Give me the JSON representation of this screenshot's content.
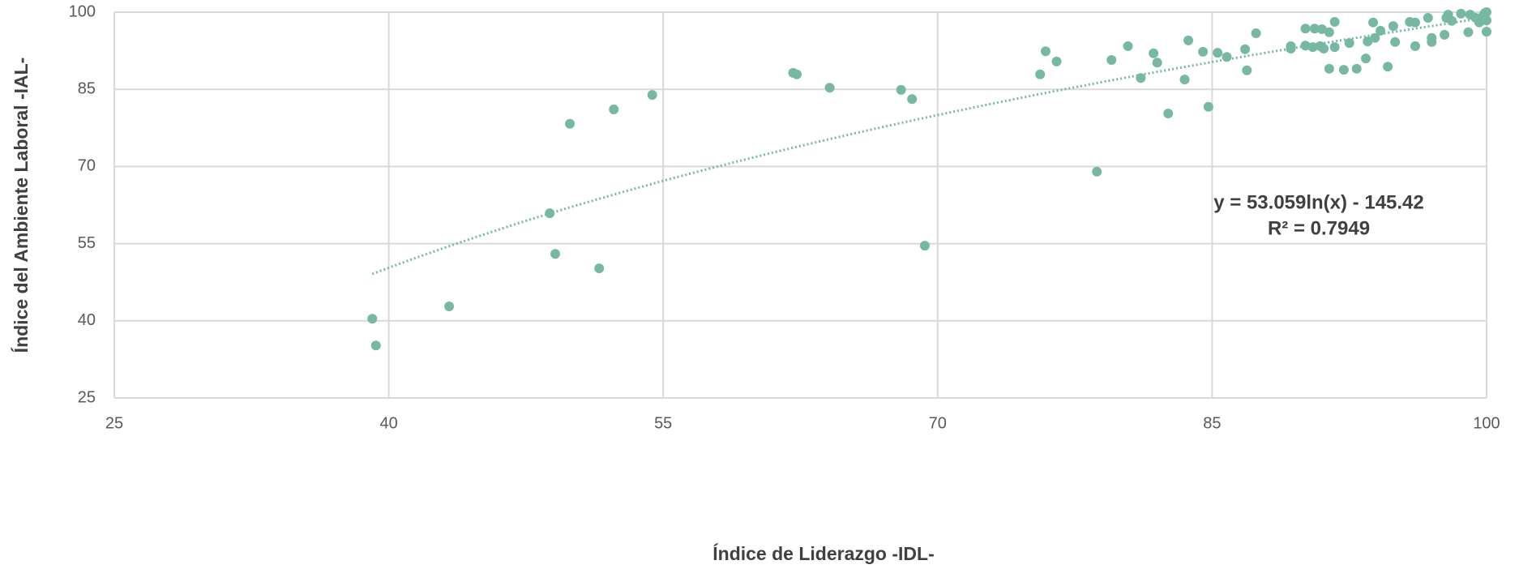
{
  "chart_data": {
    "type": "scatter",
    "x_label": "Índice de Liderazgo -IDL-",
    "y_label": "Índice del Ambiente Laboral -IAL-",
    "color": "#76b9a0",
    "grid": true,
    "xlim": [
      25,
      100
    ],
    "xticks": [
      25,
      40,
      55,
      70,
      85,
      100
    ],
    "ylim": [
      25,
      100
    ],
    "yticks": [
      25,
      40,
      55,
      70,
      85,
      100
    ],
    "x": [
      39.1,
      39.3,
      43.3,
      48.8,
      49.1,
      49.9,
      51.5,
      52.3,
      54.4,
      62.1,
      62.3,
      64.1,
      68.0,
      68.6,
      69.3,
      75.6,
      75.9,
      76.5,
      78.7,
      79.5,
      80.4,
      81.1,
      81.8,
      82.0,
      82.6,
      83.5,
      83.7,
      84.5,
      84.8,
      85.3,
      85.8,
      86.8,
      86.9,
      87.4,
      89.3,
      89.3,
      90.1,
      90.1,
      90.5,
      90.6,
      90.9,
      91.0,
      91.1,
      91.4,
      91.4,
      91.7,
      91.7,
      92.2,
      92.5,
      92.9,
      93.4,
      93.5,
      93.8,
      93.9,
      94.2,
      94.6,
      94.9,
      95.0,
      95.8,
      96.1,
      96.1,
      96.8,
      97.0,
      97.0,
      97.7,
      97.8,
      97.9,
      98.1,
      98.6,
      99.0,
      99.1,
      99.4,
      99.6,
      99.8,
      100,
      100,
      100,
      99.9
    ],
    "values": [
      40.4,
      35.2,
      42.8,
      60.9,
      53.0,
      78.3,
      50.2,
      81.1,
      83.9,
      88.2,
      87.9,
      85.3,
      84.9,
      83.1,
      54.6,
      87.9,
      92.4,
      90.4,
      69.0,
      90.7,
      93.4,
      87.2,
      92.0,
      90.2,
      80.3,
      86.9,
      94.5,
      92.3,
      81.6,
      92.1,
      91.3,
      92.8,
      88.7,
      95.9,
      93.4,
      92.9,
      96.8,
      93.5,
      93.2,
      96.8,
      93.4,
      96.7,
      92.9,
      89.0,
      96.1,
      98.1,
      93.2,
      88.8,
      94.0,
      89.0,
      91.0,
      94.3,
      98.0,
      95.0,
      96.4,
      89.4,
      97.3,
      94.2,
      98.1,
      93.4,
      98.0,
      98.9,
      95.0,
      94.2,
      95.6,
      98.9,
      99.5,
      98.3,
      99.7,
      96.1,
      99.5,
      98.9,
      98.0,
      99.2,
      100,
      98.4,
      96.2,
      99.8
    ],
    "trendline": {
      "equation": "y = 53.059ln(x) - 145.42",
      "r_squared": "R² = 0.7949",
      "coefficients": [
        53.059,
        -145.42
      ]
    }
  }
}
